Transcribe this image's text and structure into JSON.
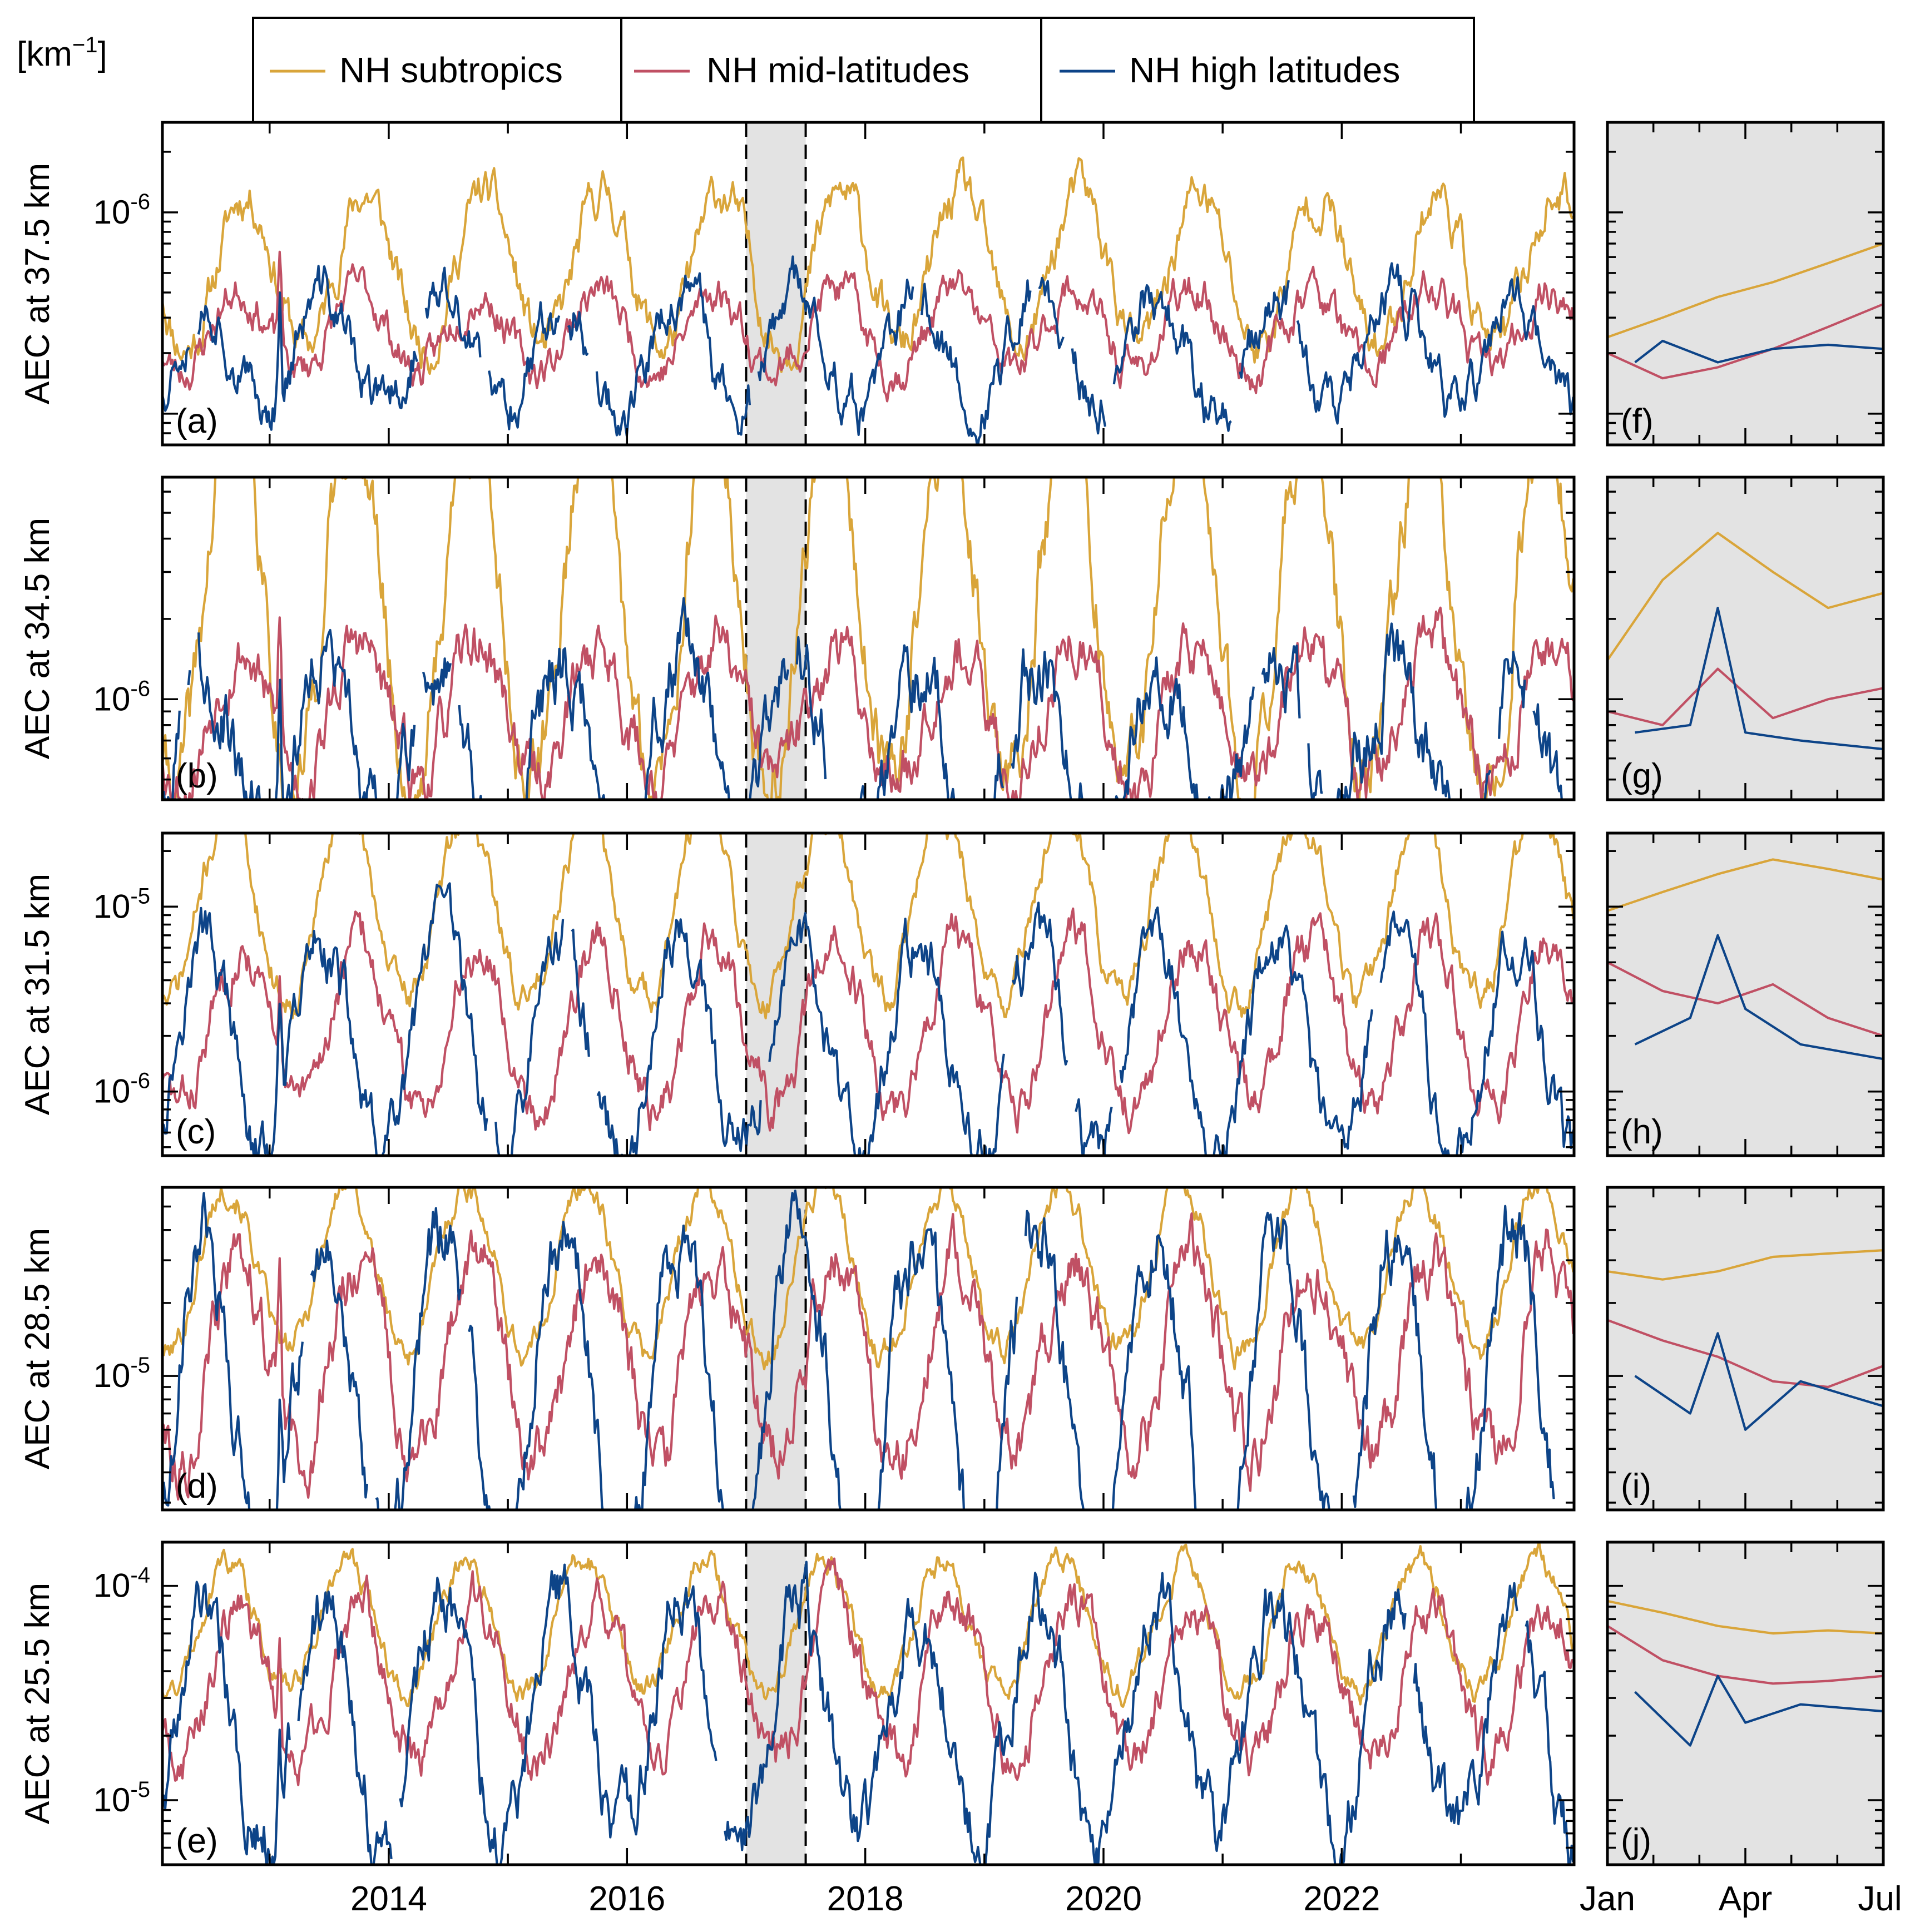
{
  "chart_data": {
    "type": "line",
    "unit": "[km",
    "unit_exponent": "−1",
    "unit_close": "]",
    "scale": "log",
    "grid": false,
    "legend_placement": "top",
    "series_names": [
      "NH subtropics",
      "NH mid-latitudes",
      "NH high latitudes"
    ],
    "colors": {
      "NH subtropics": "#d9a53a",
      "NH mid-latitudes": "#c05064",
      "NH high latitudes": "#0d4488",
      "shade": "#e3e3e3"
    },
    "time_axis": {
      "range": [
        2012.1,
        2023.95
      ],
      "tick_labels": [
        "2014",
        "2016",
        "2018",
        "2020",
        "2022"
      ],
      "tick_values": [
        2014,
        2016,
        2018,
        2020,
        2022
      ],
      "minor_ticks": [
        2013,
        2015,
        2017,
        2019,
        2021,
        2023
      ],
      "shaded_interval": [
        2017.0,
        2017.5
      ]
    },
    "zoom_axis": {
      "range": [
        "Jan",
        "Jul"
      ],
      "tick_labels": [
        "Jan",
        "Apr",
        "Jul"
      ],
      "tick_months": [
        0,
        3,
        6
      ]
    },
    "panels": [
      {
        "label": "(a)",
        "zoom_label": "(f)",
        "ylabel": "AEC at 37.5 km",
        "ylim": [
          7e-08,
          2.8e-06
        ],
        "major_ticks": [
          {
            "value": 1e-06,
            "base": "10",
            "exp": "-6"
          }
        ],
        "series": [
          {
            "name": "NH subtropics",
            "mean": 5.2e-07,
            "amp": 0.38,
            "phase": 0.55,
            "noise": 0.07,
            "seed": 11,
            "x": [
              2017.0,
              2017.1,
              2017.2,
              2017.3,
              2017.4,
              2017.5
            ],
            "y": [
              2.4e-07,
              3e-07,
              3.8e-07,
              4.5e-07,
              5.6e-07,
              7e-07
            ]
          },
          {
            "name": "NH mid-latitudes",
            "mean": 2.6e-07,
            "amp": 0.2,
            "phase": 0.5,
            "noise": 0.06,
            "seed": 23,
            "x": [
              2017.0,
              2017.1,
              2017.2,
              2017.3,
              2017.4,
              2017.5
            ],
            "y": [
              2e-07,
              1.5e-07,
              1.7e-07,
              2.1e-07,
              2.7e-07,
              3.5e-07
            ]
          },
          {
            "name": "NH high latitudes",
            "mean": 2e-07,
            "amp": 0.28,
            "phase": 0.2,
            "noise": 0.08,
            "seed": 37,
            "x": [
              2017.05,
              2017.1,
              2017.2,
              2017.3,
              2017.4,
              2017.5
            ],
            "y": [
              1.8e-07,
              2.3e-07,
              1.8e-07,
              2.1e-07,
              2.2e-07,
              2.1e-07
            ]
          }
        ]
      },
      {
        "label": "(b)",
        "zoom_label": "(g)",
        "ylabel": "AEC at 34.5 km",
        "ylim": [
          4.2e-07,
          6.8e-06
        ],
        "major_ticks": [
          {
            "value": 1e-06,
            "base": "10",
            "exp": "-6"
          }
        ],
        "series": [
          {
            "name": "NH subtropics",
            "mean": 2.3e-06,
            "amp": 0.7,
            "phase": 0.45,
            "noise": 0.09,
            "seed": 41,
            "x": [
              2017.0,
              2017.1,
              2017.2,
              2017.3,
              2017.4,
              2017.5
            ],
            "y": [
              1.4e-06,
              2.8e-06,
              4.2e-06,
              3e-06,
              2.2e-06,
              2.5e-06
            ]
          },
          {
            "name": "NH mid-latitudes",
            "mean": 9e-07,
            "amp": 0.25,
            "phase": 0.5,
            "noise": 0.07,
            "seed": 53,
            "x": [
              2017.0,
              2017.1,
              2017.2,
              2017.3,
              2017.4,
              2017.5
            ],
            "y": [
              9e-07,
              8e-07,
              1.3e-06,
              8.5e-07,
              1e-06,
              1.1e-06
            ]
          },
          {
            "name": "NH high latitudes",
            "mean": 6.6e-07,
            "amp": 0.32,
            "phase": 0.2,
            "noise": 0.09,
            "seed": 67,
            "x": [
              2017.05,
              2017.15,
              2017.2,
              2017.25,
              2017.35,
              2017.5
            ],
            "y": [
              7.5e-07,
              8e-07,
              2.2e-06,
              7.5e-07,
              7e-07,
              6.5e-07
            ]
          }
        ]
      },
      {
        "label": "(c)",
        "zoom_label": "(h)",
        "ylabel": "AEC at 31.5 km",
        "ylim": [
          4.5e-07,
          2.5e-05
        ],
        "major_ticks": [
          {
            "value": 1e-06,
            "base": "10",
            "exp": "-6"
          },
          {
            "value": 1e-05,
            "base": "10",
            "exp": "-5"
          }
        ],
        "series": [
          {
            "name": "NH subtropics",
            "mean": 1e-05,
            "amp": 0.5,
            "phase": 0.4,
            "noise": 0.06,
            "seed": 71,
            "x": [
              2017.0,
              2017.1,
              2017.2,
              2017.3,
              2017.4,
              2017.5
            ],
            "y": [
              9.5e-06,
              1.2e-05,
              1.5e-05,
              1.8e-05,
              1.6e-05,
              1.4e-05
            ]
          },
          {
            "name": "NH mid-latitudes",
            "mean": 2.3e-06,
            "amp": 0.45,
            "phase": 0.5,
            "noise": 0.08,
            "seed": 83,
            "x": [
              2017.0,
              2017.1,
              2017.2,
              2017.3,
              2017.4,
              2017.5
            ],
            "y": [
              5e-06,
              3.5e-06,
              3e-06,
              3.8e-06,
              2.5e-06,
              2e-06
            ]
          },
          {
            "name": "NH high latitudes",
            "mean": 1.7e-06,
            "amp": 0.6,
            "phase": 0.2,
            "noise": 0.1,
            "seed": 97,
            "x": [
              2017.05,
              2017.15,
              2017.2,
              2017.25,
              2017.35,
              2017.5
            ],
            "y": [
              1.8e-06,
              2.5e-06,
              7e-06,
              2.8e-06,
              1.8e-06,
              1.5e-06
            ]
          }
        ]
      },
      {
        "label": "(d)",
        "zoom_label": "(i)",
        "ylabel": "AEC at 28.5 km",
        "ylim": [
          2.8e-06,
          6e-05
        ],
        "major_ticks": [
          {
            "value": 1e-05,
            "base": "10",
            "exp": "-5"
          }
        ],
        "series": [
          {
            "name": "NH subtropics",
            "mean": 2.8e-05,
            "amp": 0.35,
            "phase": 0.4,
            "noise": 0.04,
            "seed": 101,
            "x": [
              2017.0,
              2017.1,
              2017.2,
              2017.3,
              2017.4,
              2017.5
            ],
            "y": [
              2.7e-05,
              2.5e-05,
              2.7e-05,
              3.1e-05,
              3.2e-05,
              3.3e-05
            ]
          },
          {
            "name": "NH mid-latitudes",
            "mean": 1.2e-05,
            "amp": 0.4,
            "phase": 0.5,
            "noise": 0.08,
            "seed": 113,
            "x": [
              2017.0,
              2017.1,
              2017.2,
              2017.3,
              2017.4,
              2017.5
            ],
            "y": [
              1.7e-05,
              1.4e-05,
              1.2e-05,
              9.5e-06,
              9e-06,
              1.1e-05
            ]
          },
          {
            "name": "NH high latitudes",
            "mean": 8e-06,
            "amp": 0.7,
            "phase": 0.2,
            "noise": 0.1,
            "seed": 127,
            "x": [
              2017.05,
              2017.15,
              2017.2,
              2017.25,
              2017.35,
              2017.5
            ],
            "y": [
              1e-05,
              7e-06,
              1.5e-05,
              6e-06,
              9.5e-06,
              7.5e-06
            ]
          }
        ]
      },
      {
        "label": "(e)",
        "zoom_label": "(j)",
        "ylabel": "AEC at 25.5 km",
        "ylim": [
          5e-06,
          0.00016
        ],
        "major_ticks": [
          {
            "value": 1e-05,
            "base": "10",
            "exp": "-5"
          },
          {
            "value": 0.0001,
            "base": "10",
            "exp": "-4"
          }
        ],
        "series": [
          {
            "name": "NH subtropics",
            "mean": 6.5e-05,
            "amp": 0.3,
            "phase": 0.4,
            "noise": 0.04,
            "seed": 131,
            "x": [
              2017.0,
              2017.1,
              2017.2,
              2017.3,
              2017.4,
              2017.5
            ],
            "y": [
              8.5e-05,
              7.5e-05,
              6.5e-05,
              6e-05,
              6.2e-05,
              6e-05
            ]
          },
          {
            "name": "NH mid-latitudes",
            "mean": 3.6e-05,
            "amp": 0.35,
            "phase": 0.5,
            "noise": 0.07,
            "seed": 149,
            "x": [
              2017.0,
              2017.1,
              2017.2,
              2017.3,
              2017.4,
              2017.5
            ],
            "y": [
              6.5e-05,
              4.5e-05,
              3.8e-05,
              3.5e-05,
              3.6e-05,
              3.8e-05
            ]
          },
          {
            "name": "NH high latitudes",
            "mean": 2.3e-05,
            "amp": 0.55,
            "phase": 0.2,
            "noise": 0.1,
            "seed": 163,
            "x": [
              2017.05,
              2017.15,
              2017.2,
              2017.25,
              2017.35,
              2017.5
            ],
            "y": [
              3.2e-05,
              1.8e-05,
              3.8e-05,
              2.3e-05,
              2.8e-05,
              2.6e-05
            ]
          }
        ]
      }
    ]
  }
}
